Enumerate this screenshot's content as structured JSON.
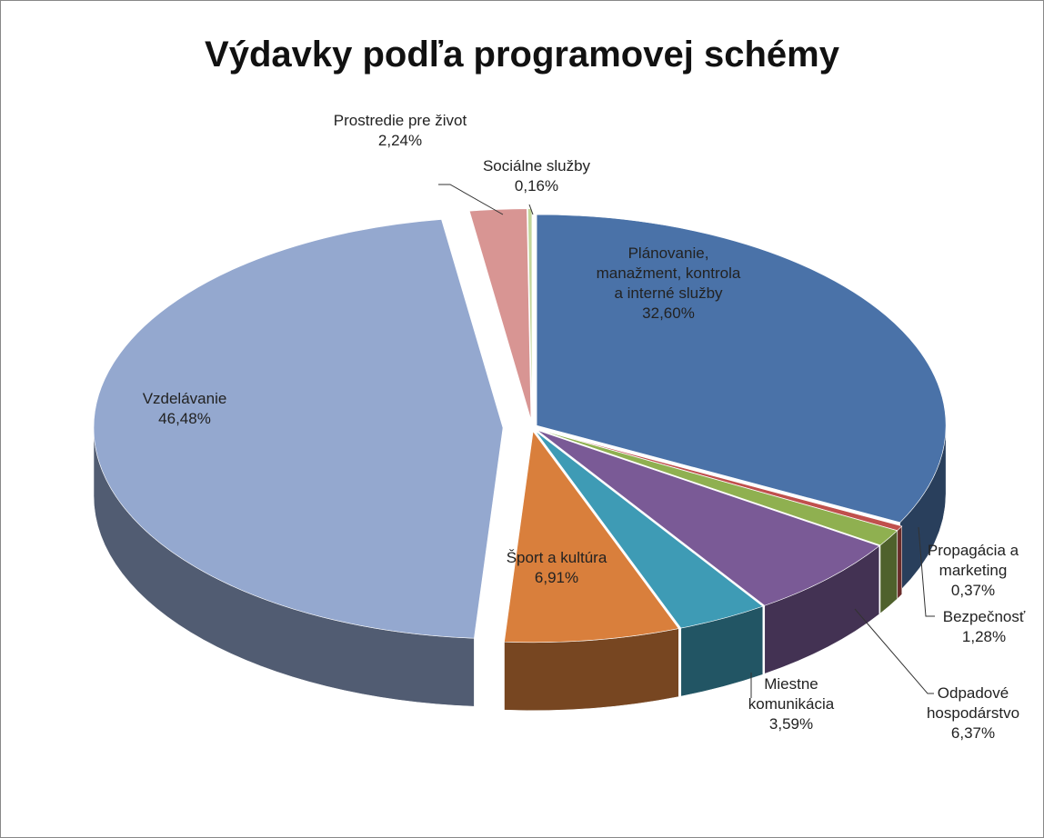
{
  "chart_data": {
    "type": "pie3d",
    "title": "Výdavky podľa programovej schémy",
    "categories": [
      "Plánovanie, manažment, kontrola a interné služby",
      "Propagácia a marketing",
      "Bezpečnosť",
      "Odpadové hospodárstvo",
      "Miestne komunikácia",
      "Šport a kultúra",
      "Vzdelávanie",
      "Prostredie pre život",
      "Sociálne služby"
    ],
    "values": [
      32.6,
      0.37,
      1.28,
      6.37,
      3.59,
      6.91,
      46.48,
      2.24,
      0.16
    ],
    "value_labels": [
      "32,60%",
      "0,37%",
      "1,28%",
      "6,37%",
      "3,59%",
      "6,91%",
      "46,48%",
      "2,24%",
      "0,16%"
    ],
    "colors": [
      "#4a72a8",
      "#c0504d",
      "#8fb050",
      "#7a5a96",
      "#3e9bb5",
      "#d97f3c",
      "#94a8cf",
      "#d89593",
      "#c3d69b"
    ]
  }
}
